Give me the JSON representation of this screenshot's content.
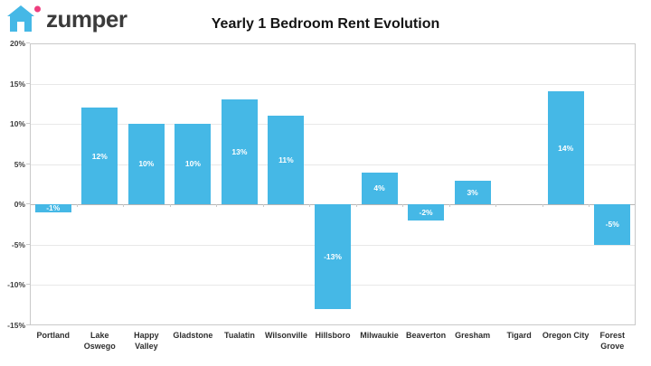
{
  "logo": {
    "text": "zumper",
    "house_icon_color": "#45b8e6",
    "door_color": "#ffffff",
    "dot_color": "#ee3d7e"
  },
  "header": {
    "title": "Yearly 1 Bedroom Rent Evolution"
  },
  "chart_data": {
    "type": "bar",
    "title": "Yearly 1 Bedroom Rent Evolution",
    "categories": [
      "Portland",
      "Lake Oswego",
      "Happy Valley",
      "Gladstone",
      "Tualatin",
      "Wilsonville",
      "Hillsboro",
      "Milwaukie",
      "Beaverton",
      "Gresham",
      "Tigard",
      "Oregon City",
      "Forest Grove"
    ],
    "values": [
      -1,
      12,
      10,
      10,
      13,
      11,
      -13,
      4,
      -2,
      3,
      0,
      14,
      -5
    ],
    "bar_labels": [
      "-1%",
      "12%",
      "10%",
      "10%",
      "13%",
      "11%",
      "-13%",
      "4%",
      "-2%",
      "3%",
      "",
      "14%",
      "-5%"
    ],
    "bar_color": "#45b8e6",
    "bar_label_color": "#ffffff",
    "xlabel": "",
    "ylabel": "",
    "ylim": [
      -15,
      20
    ],
    "ytick_values": [
      20,
      15,
      10,
      5,
      0,
      -5,
      -10,
      -15
    ],
    "ytick_labels": [
      "20%",
      "15%",
      "10%",
      "5%",
      "0%",
      "-5%",
      "-10%",
      "-15%"
    ],
    "grid": true,
    "legend": "none"
  }
}
